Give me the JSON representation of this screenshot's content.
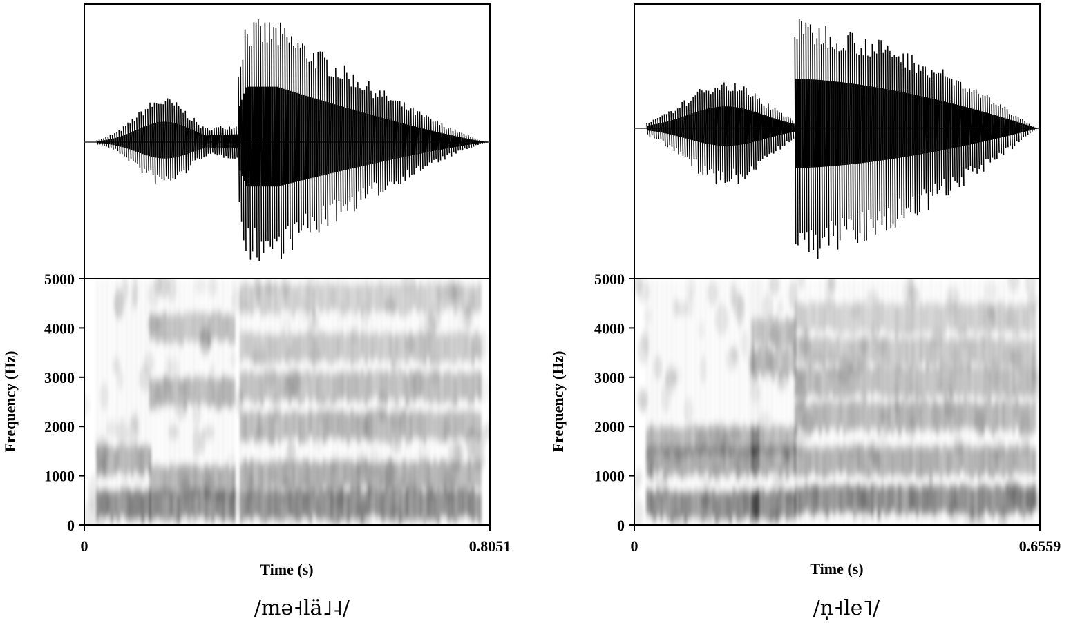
{
  "chart_data": [
    {
      "type": "spectrogram",
      "caption": "/mə˧lä˩˨/",
      "xlabel": "Time (s)",
      "ylabel": "Frequency (Hz)",
      "xlim": [
        0,
        0.8051
      ],
      "ylim": [
        0,
        5000
      ],
      "x_ticks": [
        "0",
        "0.8051"
      ],
      "y_ticks": [
        "0",
        "1000",
        "2000",
        "3000",
        "4000",
        "5000"
      ],
      "waveform": {
        "onset": 0.025,
        "offset": 0.8,
        "peak_time": 0.38,
        "peak_amplitude": 0.97,
        "min_amplitude": -0.97
      },
      "segments": [
        {
          "start": 0.025,
          "end": 0.13,
          "formants": [
            400,
            1300
          ]
        },
        {
          "start": 0.13,
          "end": 0.3,
          "formants": [
            400,
            900,
            2700,
            4000
          ]
        },
        {
          "start": 0.31,
          "end": 0.79,
          "formants": [
            400,
            1000,
            2000,
            2800,
            3600,
            4600
          ]
        }
      ],
      "colors": {
        "ink": "#000000"
      }
    },
    {
      "type": "spectrogram",
      "caption": "/n̩˧le˥/",
      "xlabel": "Time (s)",
      "ylabel": "Frequency (Hz)",
      "xlim": [
        0,
        0.6559
      ],
      "ylim": [
        0,
        5000
      ],
      "x_ticks": [
        "0",
        "0.6559"
      ],
      "y_ticks": [
        "0",
        "1000",
        "2000",
        "3000",
        "4000",
        "5000"
      ],
      "waveform": {
        "onset": 0.02,
        "offset": 0.65,
        "peak_time": 0.27,
        "peak_amplitude": 0.96,
        "min_amplitude": -0.98
      },
      "segments": [
        {
          "start": 0.02,
          "end": 0.2,
          "formants": [
            400,
            1300,
            1700
          ]
        },
        {
          "start": 0.19,
          "end": 0.26,
          "formants": [
            400,
            1300,
            1700,
            3300,
            3900
          ]
        },
        {
          "start": 0.26,
          "end": 0.65,
          "formants": [
            500,
            1300,
            2200,
            2900,
            3500,
            4200
          ]
        }
      ],
      "colors": {
        "ink": "#000000"
      }
    }
  ]
}
